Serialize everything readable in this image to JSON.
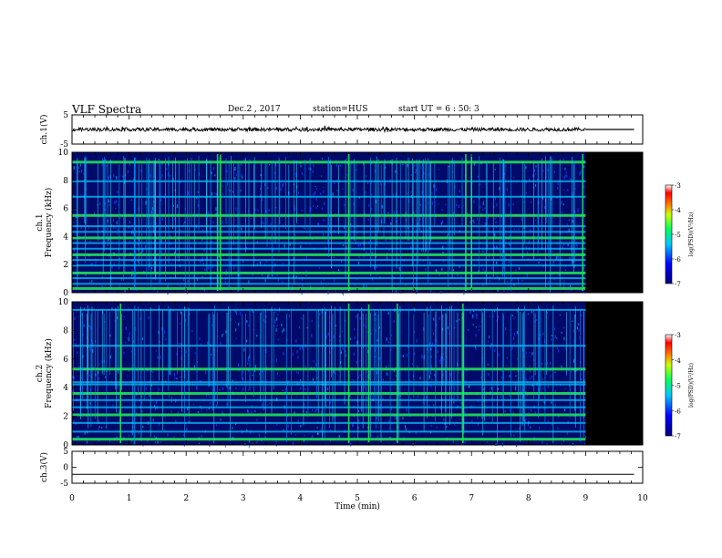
{
  "header": {
    "title": "VLF Spectra",
    "date": "Dec.2 , 2017",
    "station": "station=HUS",
    "start": "start UT = 6 : 50: 3"
  },
  "colors": {
    "background": "#000000",
    "low": "#0000aa",
    "mid": "#00c8ff",
    "high": "#22ee55",
    "line": "#000000"
  },
  "chart_data": [
    {
      "type": "line",
      "name": "ch1-waveform",
      "ylabel": "ch.1(V)",
      "ylim": [
        -5,
        5
      ],
      "yticks": [
        "5",
        "-5"
      ],
      "xlim": [
        0,
        10
      ],
      "data_end_min": 9.0,
      "baseline": 0,
      "amplitude_approx": 0.6
    },
    {
      "type": "heatmap",
      "name": "ch1-spectrogram",
      "ylabel": "ch.1\nFrequency (kHz)",
      "ylim": [
        0,
        10
      ],
      "yticks": [
        "0",
        "2",
        "4",
        "6",
        "8",
        "10"
      ],
      "xlim": [
        0,
        10
      ],
      "data_end_min": 9.0,
      "bands_khz": [
        0.3,
        0.6,
        1.0,
        1.4,
        1.9,
        2.3,
        2.7,
        3.1,
        3.5,
        3.9,
        4.3,
        4.7,
        5.5,
        6.8,
        7.9,
        9.3
      ],
      "strong_vertical_min": [
        2.55,
        2.6,
        4.85,
        6.9,
        7.0,
        8.95
      ],
      "colorbar": {
        "label": "log(PSD)(V²/Hz)",
        "ticks": [
          "-3",
          "-4",
          "-5",
          "-6",
          "-7"
        ],
        "range": [
          -7,
          -3
        ]
      }
    },
    {
      "type": "heatmap",
      "name": "ch2-spectrogram",
      "ylabel": "ch.2\nFrequency (kHz)",
      "ylim": [
        0,
        10
      ],
      "yticks": [
        "0",
        "2",
        "4",
        "6",
        "8",
        "10"
      ],
      "xlim": [
        0,
        10
      ],
      "data_end_min": 9.0,
      "bands_khz": [
        0.4,
        0.9,
        1.5,
        2.1,
        2.6,
        3.1,
        3.6,
        4.2,
        4.35,
        5.3,
        6.9,
        9.4
      ],
      "strong_vertical_min": [
        0.85,
        4.85,
        5.2,
        5.7,
        6.85
      ],
      "colorbar": {
        "label": "log(PSD)(V²/Hz)",
        "ticks": [
          "-3",
          "-4",
          "-5",
          "-6",
          "-7"
        ],
        "range": [
          -7,
          -3
        ]
      }
    },
    {
      "type": "line",
      "name": "ch3-waveform",
      "ylabel": "ch.3(V)",
      "ylim": [
        -5,
        5
      ],
      "yticks": [
        "5",
        "0",
        "-5"
      ],
      "xlim": [
        0,
        10
      ],
      "constant_value": -2.2
    }
  ],
  "xaxis": {
    "label": "Time (min)",
    "ticks": [
      "0",
      "1",
      "2",
      "3",
      "4",
      "5",
      "6",
      "7",
      "8",
      "9",
      "10"
    ]
  }
}
